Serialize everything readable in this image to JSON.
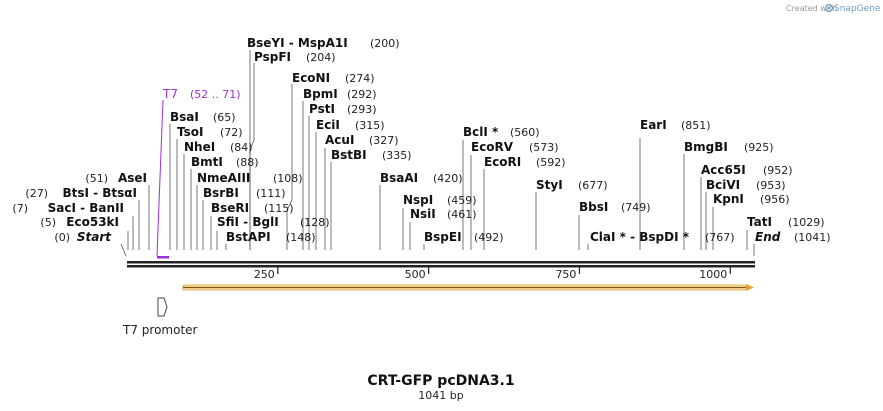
{
  "credit": {
    "prefix": "Created with",
    "brand": "SnapGene"
  },
  "map": {
    "title": "CRT-GFP pcDNA3.1",
    "length_label": "1041 bp",
    "length": 1041,
    "ticks": [
      {
        "value": 250,
        "label": "250"
      },
      {
        "value": 500,
        "label": "500"
      },
      {
        "value": 750,
        "label": "750"
      },
      {
        "value": 1000,
        "label": "1000"
      }
    ]
  },
  "features": {
    "t7_label": {
      "name": "T7",
      "range": "(52 .. 71)",
      "color": "#9b30d9"
    },
    "t7_promoter": {
      "label": "T7 promoter"
    },
    "orf_color": "#f5a623"
  },
  "sites": [
    {
      "id": "bseyi",
      "name": "BseYI  -  MspA1I",
      "pos": "(200)"
    },
    {
      "id": "pspfi",
      "name": "PspFI",
      "pos": "(204)"
    },
    {
      "id": "econi",
      "name": "EcoNI",
      "pos": "(274)"
    },
    {
      "id": "bpmi",
      "name": "BpmI",
      "pos": "(292)"
    },
    {
      "id": "psti",
      "name": "PstI",
      "pos": "(293)"
    },
    {
      "id": "ecii",
      "name": "EciI",
      "pos": "(315)"
    },
    {
      "id": "acui",
      "name": "AcuI",
      "pos": "(327)"
    },
    {
      "id": "bstbi",
      "name": "BstBI",
      "pos": "(335)"
    },
    {
      "id": "bsai",
      "name": "BsaI",
      "pos": "(65)"
    },
    {
      "id": "tsoi",
      "name": "TsoI",
      "pos": "(72)"
    },
    {
      "id": "nhei",
      "name": "NheI",
      "pos": "(84)"
    },
    {
      "id": "bmti",
      "name": "BmtI",
      "pos": "(88)"
    },
    {
      "id": "nmeaiii",
      "name": "NmeAIII",
      "pos": "(108)"
    },
    {
      "id": "bsrbi",
      "name": "BsrBI",
      "pos": "(111)"
    },
    {
      "id": "bseri",
      "name": "BseRI",
      "pos": "(115)"
    },
    {
      "id": "sfii",
      "name": "SfiI  -  BglI",
      "pos": "(128)"
    },
    {
      "id": "bstapi",
      "name": "BstAPI",
      "pos": "(148)"
    },
    {
      "id": "asei",
      "name": "AseI",
      "pos": "(51)"
    },
    {
      "id": "btsi",
      "name": "BtsI  -  BtsαI",
      "pos": "(27)"
    },
    {
      "id": "saci",
      "name": "SacI  -  BanII",
      "pos": "(7)"
    },
    {
      "id": "eco53ki",
      "name": "Eco53kI",
      "pos": "(5)"
    },
    {
      "id": "start",
      "name": "Start",
      "pos": "(0)"
    },
    {
      "id": "bsaai",
      "name": "BsaAI",
      "pos": "(420)"
    },
    {
      "id": "bcli",
      "name": "BclI *",
      "pos": "(560)"
    },
    {
      "id": "ecorv",
      "name": "EcoRV",
      "pos": "(573)"
    },
    {
      "id": "ecori",
      "name": "EcoRI",
      "pos": "(592)"
    },
    {
      "id": "nspi",
      "name": "NspI",
      "pos": "(459)"
    },
    {
      "id": "nsii",
      "name": "NsiI",
      "pos": "(461)"
    },
    {
      "id": "bspei",
      "name": "BspEI",
      "pos": "(492)"
    },
    {
      "id": "styi",
      "name": "StyI",
      "pos": "(677)"
    },
    {
      "id": "bbsi",
      "name": "BbsI",
      "pos": "(749)"
    },
    {
      "id": "clai",
      "name": "ClaI *  -  BspDI *",
      "pos": "(767)"
    },
    {
      "id": "eari",
      "name": "EarI",
      "pos": "(851)"
    },
    {
      "id": "bmgbi",
      "name": "BmgBI",
      "pos": "(925)"
    },
    {
      "id": "acc65i",
      "name": "Acc65I",
      "pos": "(952)"
    },
    {
      "id": "bcivi",
      "name": "BciVI",
      "pos": "(953)"
    },
    {
      "id": "kpni",
      "name": "KpnI",
      "pos": "(956)"
    },
    {
      "id": "tati",
      "name": "TatI",
      "pos": "(1029)"
    },
    {
      "id": "end",
      "name": "End",
      "pos": "(1041)"
    }
  ]
}
